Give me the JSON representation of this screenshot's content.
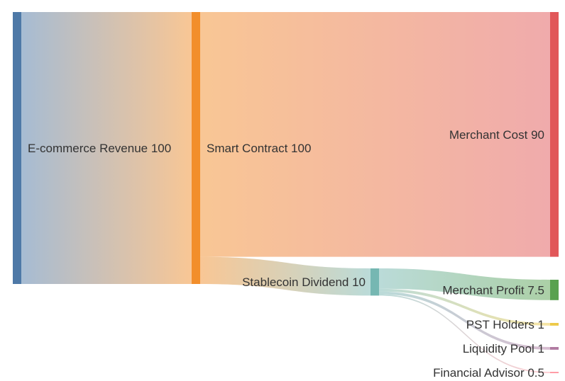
{
  "chart_data": {
    "type": "sankey",
    "nodes": [
      {
        "id": "ecom",
        "label": "E-commerce Revenue",
        "value": 100,
        "color": "#4e79a7"
      },
      {
        "id": "smart",
        "label": "Smart Contract",
        "value": 100,
        "color": "#f28e2b"
      },
      {
        "id": "cost",
        "label": "Merchant Cost",
        "value": 90,
        "color": "#e15759"
      },
      {
        "id": "div",
        "label": "Stablecoin Dividend",
        "value": 10,
        "color": "#76b7b2"
      },
      {
        "id": "profit",
        "label": "Merchant Profit",
        "value": 7.5,
        "color": "#59a14f"
      },
      {
        "id": "pst",
        "label": "PST Holders",
        "value": 1,
        "color": "#edc948"
      },
      {
        "id": "pool",
        "label": "Liquidity Pool",
        "value": 1,
        "color": "#b07aa1"
      },
      {
        "id": "fa",
        "label": "Financial Advisor",
        "value": 0.5,
        "color": "#ff9da7"
      }
    ],
    "links": [
      {
        "source": "ecom",
        "target": "smart",
        "value": 100
      },
      {
        "source": "smart",
        "target": "cost",
        "value": 90
      },
      {
        "source": "smart",
        "target": "div",
        "value": 10
      },
      {
        "source": "div",
        "target": "profit",
        "value": 7.5
      },
      {
        "source": "div",
        "target": "pst",
        "value": 1
      },
      {
        "source": "div",
        "target": "pool",
        "value": 1
      },
      {
        "source": "div",
        "target": "fa",
        "value": 0.5
      }
    ]
  }
}
